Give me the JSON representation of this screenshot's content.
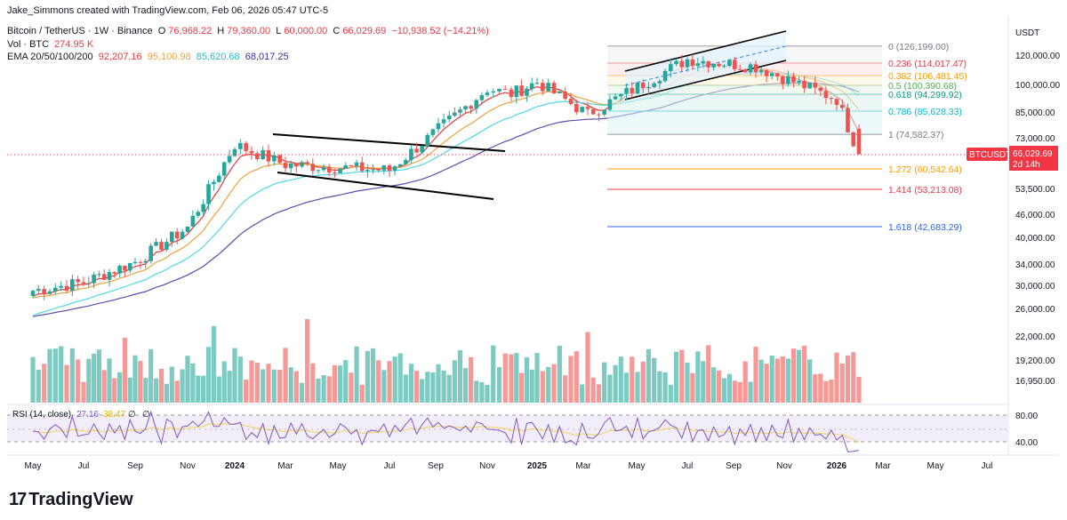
{
  "header": {
    "author_line": "Jake_Simmons created with TradingView.com, Feb 06, 2026 05:47 UTC-5",
    "symbol": "Bitcoin / TetherUS · 1W · Binance",
    "ohlc_o_label": "O",
    "ohlc_o": "76,968.22",
    "ohlc_h_label": "H",
    "ohlc_h": "79,360.00",
    "ohlc_l_label": "L",
    "ohlc_l": "60,000.00",
    "ohlc_c_label": "C",
    "ohlc_c": "66,029.69",
    "change": "−10,938.52 (−14.21%)",
    "vol_label": "Vol · BTC",
    "vol_value": "274.95 K",
    "ema_label": "EMA 20/50/100/200",
    "ema_values": [
      "92,207.16",
      "95,100.98",
      "85,620.68",
      "68,017.25"
    ],
    "rsi_label": "RSI (14, close)",
    "rsi_value": "27.16",
    "rsi_ma": "38.47"
  },
  "price_axis": {
    "currency": "USDT",
    "ticks": [
      "120,000.00",
      "100,000.00",
      "85,000.00",
      "73,000.00",
      "66,029.69",
      "53,500.00",
      "46,000.00",
      "40,000.00",
      "34,000.00",
      "30,000.00",
      "26,000.00",
      "22,000.00",
      "19,200.00",
      "16,950.00"
    ],
    "last_symbol": "BTCUSDT",
    "last_price": "66,029.69",
    "countdown": "2d 14h"
  },
  "rsi_axis": {
    "ticks": [
      "80.00",
      "40.00"
    ]
  },
  "time_axis": {
    "ticks": [
      "May",
      "Jul",
      "Sep",
      "Nov",
      "2024",
      "Mar",
      "May",
      "Jul",
      "Sep",
      "Nov",
      "2025",
      "Mar",
      "May",
      "Jul",
      "Sep",
      "Nov",
      "2026",
      "Mar",
      "May",
      "Jul"
    ]
  },
  "fib_levels": [
    {
      "ratio": "0",
      "price": "126,199.00",
      "color": "#787b86"
    },
    {
      "ratio": "0.236",
      "price": "114,017.47",
      "color": "#f23645"
    },
    {
      "ratio": "0.382",
      "price": "106,481.45",
      "color": "#ff9800"
    },
    {
      "ratio": "0.5",
      "price": "100,390.68",
      "color": "#4caf50"
    },
    {
      "ratio": "0.618",
      "price": "94,299.92",
      "color": "#089981"
    },
    {
      "ratio": "0.786",
      "price": "85,628.33",
      "color": "#00bcd4"
    },
    {
      "ratio": "1",
      "price": "74,582.37",
      "color": "#787b86"
    },
    {
      "ratio": "1.272",
      "price": "60,542.64",
      "color": "#ff9800"
    },
    {
      "ratio": "1.414",
      "price": "53,213.08",
      "color": "#f23645"
    },
    {
      "ratio": "1.618",
      "price": "42,683.29",
      "color": "#2962ff"
    }
  ],
  "colors": {
    "up": "#26a69a",
    "down": "#ef5350",
    "ema20": "#e53935",
    "ema50": "#f0a040",
    "ema100": "#4fd8e8",
    "ema200": "#5c4bb0",
    "rsi": "#7e57c2",
    "rsi_ma": "#f2d15c"
  },
  "chart_data": {
    "type": "candlestick",
    "interval": "1W",
    "scale": "log",
    "x_range": [
      "2023-04",
      "2026-07"
    ],
    "series": [
      {
        "name": "BTCUSDT",
        "x": [
          "2023-04",
          "2023-07",
          "2023-10",
          "2024-01",
          "2024-03",
          "2024-06",
          "2024-09",
          "2024-11",
          "2024-12",
          "2025-01",
          "2025-04",
          "2025-07",
          "2025-10",
          "2026-01",
          "2026-02"
        ],
        "close": [
          29000,
          30500,
          34500,
          42500,
          70000,
          62000,
          60000,
          98000,
          95000,
          102000,
          84000,
          117000,
          112000,
          92000,
          66029.69
        ]
      }
    ],
    "logo": "TradingView"
  }
}
